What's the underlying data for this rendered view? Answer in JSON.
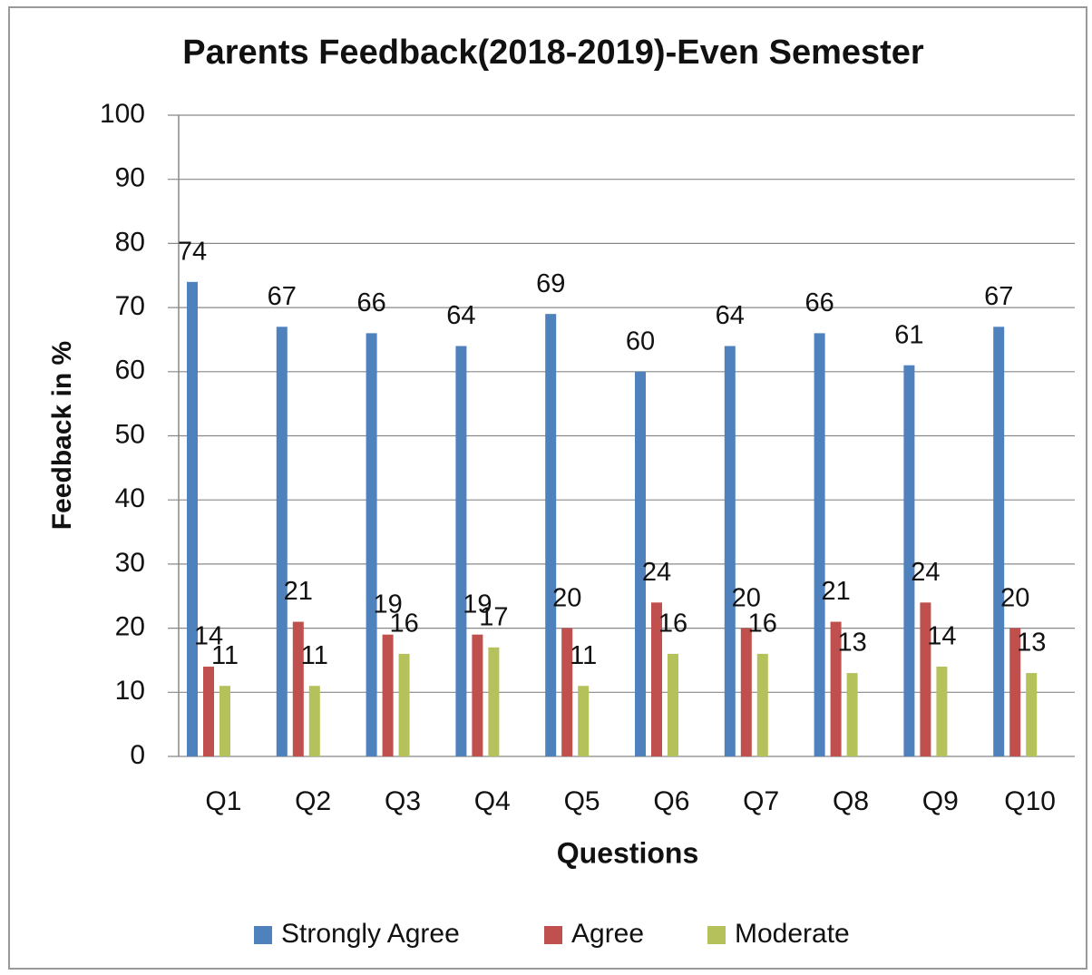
{
  "chart_data": {
    "type": "bar",
    "title": "Parents Feedback(2018-2019)-Even Semester",
    "x_label": "Questions",
    "y_label": "Feedback in %",
    "categories": [
      "Q1",
      "Q2",
      "Q3",
      "Q4",
      "Q5",
      "Q6",
      "Q7",
      "Q8",
      "Q9",
      "Q10"
    ],
    "series": [
      {
        "name": "Strongly Agree",
        "color": "#4f81bd",
        "values": [
          74,
          67,
          66,
          64,
          69,
          60,
          64,
          66,
          61,
          67
        ]
      },
      {
        "name": "Agree",
        "color": "#c0504d",
        "values": [
          14,
          21,
          19,
          19,
          20,
          24,
          20,
          21,
          24,
          20
        ]
      },
      {
        "name": "Moderate",
        "color": "#b5c15a",
        "values": [
          11,
          11,
          16,
          17,
          11,
          16,
          16,
          13,
          14,
          13
        ]
      }
    ],
    "ylim": [
      0,
      100
    ],
    "yticks": [
      0,
      10,
      20,
      30,
      40,
      50,
      60,
      70,
      80,
      90,
      100
    ],
    "grid": true,
    "legend": "bottom"
  }
}
